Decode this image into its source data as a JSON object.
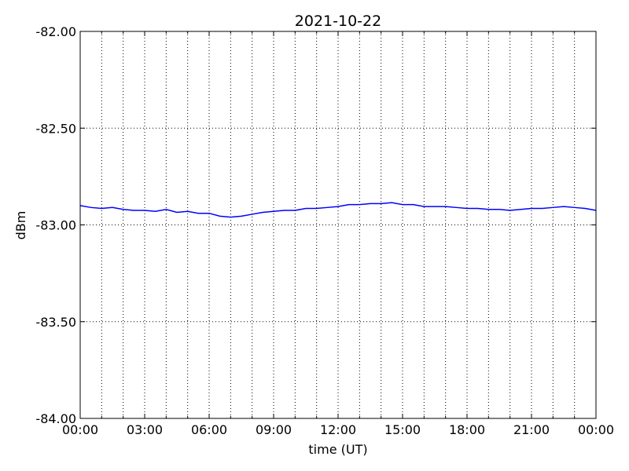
{
  "chart_data": {
    "type": "line",
    "title": "2021-10-22",
    "x_label": "time (UT)",
    "y_label": "dBm",
    "x": [
      0,
      0.5,
      1,
      1.5,
      2,
      2.5,
      3,
      3.5,
      4,
      4.5,
      5,
      5.5,
      6,
      6.5,
      7,
      7.5,
      8,
      8.5,
      9,
      9.5,
      10,
      10.5,
      11,
      11.5,
      12,
      12.5,
      13,
      13.5,
      14,
      14.5,
      15,
      15.5,
      16,
      16.5,
      17,
      17.5,
      18,
      18.5,
      19,
      19.5,
      20,
      20.5,
      21,
      21.5,
      22,
      22.5,
      23,
      23.5,
      24
    ],
    "series": [
      {
        "color": "#0000ff",
        "values": [
          -82.9,
          -82.91,
          -82.915,
          -82.91,
          -82.92,
          -82.925,
          -82.925,
          -82.93,
          -82.92,
          -82.935,
          -82.93,
          -82.94,
          -82.94,
          -82.955,
          -82.96,
          -82.955,
          -82.945,
          -82.935,
          -82.93,
          -82.925,
          -82.925,
          -82.915,
          -82.915,
          -82.91,
          -82.905,
          -82.895,
          -82.895,
          -82.89,
          -82.89,
          -82.885,
          -82.895,
          -82.895,
          -82.905,
          -82.905,
          -82.905,
          -82.91,
          -82.915,
          -82.915,
          -82.92,
          -82.92,
          -82.925,
          -82.92,
          -82.915,
          -82.915,
          -82.91,
          -82.905,
          -82.91,
          -82.915,
          -82.925
        ]
      }
    ],
    "xlim": [
      0,
      24
    ],
    "xticks": [
      {
        "value": 0,
        "label": "00:00"
      },
      {
        "value": 3,
        "label": "03:00"
      },
      {
        "value": 6,
        "label": "06:00"
      },
      {
        "value": 9,
        "label": "09:00"
      },
      {
        "value": 12,
        "label": "12:00"
      },
      {
        "value": 15,
        "label": "15:00"
      },
      {
        "value": 18,
        "label": "18:00"
      },
      {
        "value": 21,
        "label": "21:00"
      },
      {
        "value": 24,
        "label": "00:00"
      }
    ],
    "x_minor_ticks": [
      1,
      2,
      4,
      5,
      7,
      8,
      10,
      11,
      13,
      14,
      16,
      17,
      19,
      20,
      22,
      23
    ],
    "ylim": [
      -84,
      -82
    ],
    "yticks": [
      {
        "value": -84,
        "label": "-84.00"
      },
      {
        "value": -83.5,
        "label": "-83.50"
      },
      {
        "value": -83,
        "label": "-83.00"
      },
      {
        "value": -82.5,
        "label": "-82.50"
      },
      {
        "value": -82,
        "label": "-82.00"
      }
    ],
    "grid": true
  }
}
